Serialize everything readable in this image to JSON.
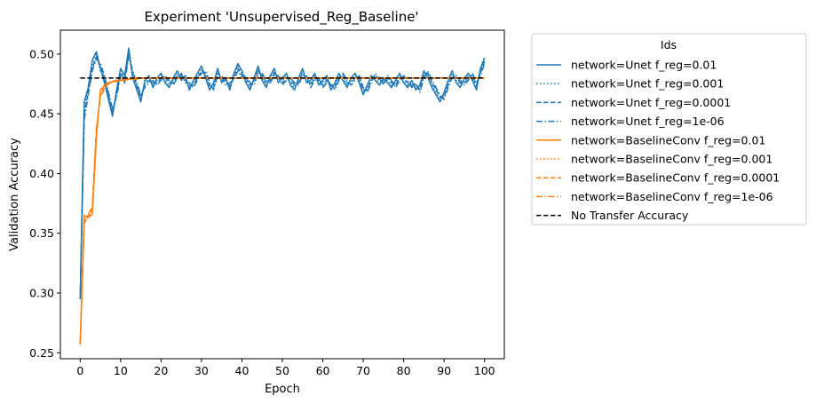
{
  "chart_data": {
    "type": "line",
    "title": "Experiment 'Unsupervised_Reg_Baseline'",
    "xlabel": "Epoch",
    "ylabel": "Validation Accuracy",
    "xlim": [
      -4.9,
      104.9
    ],
    "ylim": [
      0.245,
      0.52
    ],
    "xticks": [
      0,
      10,
      20,
      30,
      40,
      50,
      60,
      70,
      80,
      90,
      100
    ],
    "yticks": [
      0.25,
      0.3,
      0.35,
      0.4,
      0.45,
      0.5
    ],
    "ytick_labels": [
      "0.25",
      "0.30",
      "0.35",
      "0.40",
      "0.45",
      "0.50"
    ],
    "grid": false,
    "legend": {
      "title": "Ids",
      "placement": "outside-right"
    },
    "colors": {
      "unet": "#1f77b4",
      "baseline": "#ff7f0e",
      "reference": "#000000"
    },
    "x": [
      0,
      1,
      2,
      3,
      4,
      5,
      6,
      7,
      8,
      9,
      10,
      11,
      12,
      13,
      14,
      15,
      16,
      17,
      18,
      19,
      20,
      21,
      22,
      23,
      24,
      25,
      26,
      27,
      28,
      29,
      30,
      31,
      32,
      33,
      34,
      35,
      36,
      37,
      38,
      39,
      40,
      41,
      42,
      43,
      44,
      45,
      46,
      47,
      48,
      49,
      50,
      51,
      52,
      53,
      54,
      55,
      56,
      57,
      58,
      59,
      60,
      61,
      62,
      63,
      64,
      65,
      66,
      67,
      68,
      69,
      70,
      71,
      72,
      73,
      74,
      75,
      76,
      77,
      78,
      79,
      80,
      81,
      82,
      83,
      84,
      85,
      86,
      87,
      88,
      89,
      90,
      91,
      92,
      93,
      94,
      95,
      96,
      97,
      98,
      99,
      100
    ],
    "series": [
      {
        "name": "network=Unet f_reg=0.01",
        "group": "unet",
        "dash": "solid",
        "values": [
          0.295,
          0.46,
          0.472,
          0.495,
          0.502,
          0.488,
          0.476,
          0.462,
          0.448,
          0.47,
          0.488,
          0.482,
          0.505,
          0.48,
          0.47,
          0.46,
          0.478,
          0.482,
          0.472,
          0.48,
          0.484,
          0.476,
          0.472,
          0.48,
          0.486,
          0.478,
          0.482,
          0.47,
          0.478,
          0.484,
          0.49,
          0.48,
          0.47,
          0.476,
          0.488,
          0.476,
          0.48,
          0.47,
          0.484,
          0.492,
          0.486,
          0.476,
          0.47,
          0.48,
          0.49,
          0.478,
          0.472,
          0.482,
          0.488,
          0.476,
          0.48,
          0.484,
          0.474,
          0.47,
          0.48,
          0.488,
          0.476,
          0.478,
          0.484,
          0.474,
          0.478,
          0.482,
          0.47,
          0.476,
          0.484,
          0.478,
          0.472,
          0.48,
          0.484,
          0.476,
          0.466,
          0.474,
          0.482,
          0.478,
          0.474,
          0.48,
          0.476,
          0.472,
          0.478,
          0.484,
          0.476,
          0.472,
          0.478,
          0.47,
          0.474,
          0.486,
          0.48,
          0.472,
          0.466,
          0.46,
          0.468,
          0.478,
          0.486,
          0.476,
          0.472,
          0.48,
          0.484,
          0.478,
          0.47,
          0.488,
          0.497
        ]
      },
      {
        "name": "network=Unet f_reg=0.001",
        "group": "unet",
        "dash": "dotted",
        "values": [
          0.295,
          0.455,
          0.47,
          0.49,
          0.5,
          0.486,
          0.478,
          0.464,
          0.45,
          0.468,
          0.486,
          0.48,
          0.5,
          0.482,
          0.472,
          0.462,
          0.476,
          0.48,
          0.474,
          0.478,
          0.482,
          0.478,
          0.474,
          0.478,
          0.484,
          0.48,
          0.48,
          0.472,
          0.476,
          0.482,
          0.488,
          0.482,
          0.472,
          0.474,
          0.486,
          0.478,
          0.478,
          0.472,
          0.482,
          0.49,
          0.484,
          0.478,
          0.472,
          0.478,
          0.488,
          0.48,
          0.474,
          0.48,
          0.486,
          0.478,
          0.478,
          0.482,
          0.476,
          0.472,
          0.478,
          0.486,
          0.478,
          0.476,
          0.482,
          0.476,
          0.476,
          0.48,
          0.472,
          0.474,
          0.482,
          0.48,
          0.474,
          0.478,
          0.482,
          0.478,
          0.468,
          0.472,
          0.48,
          0.48,
          0.476,
          0.478,
          0.478,
          0.474,
          0.476,
          0.482,
          0.478,
          0.474,
          0.476,
          0.472,
          0.472,
          0.484,
          0.482,
          0.474,
          0.468,
          0.462,
          0.466,
          0.476,
          0.484,
          0.478,
          0.474,
          0.478,
          0.482,
          0.48,
          0.472,
          0.486,
          0.495
        ]
      },
      {
        "name": "network=Unet f_reg=0.0001",
        "group": "unet",
        "dash": "dashed",
        "values": [
          0.295,
          0.45,
          0.468,
          0.488,
          0.498,
          0.49,
          0.48,
          0.466,
          0.452,
          0.466,
          0.484,
          0.478,
          0.502,
          0.484,
          0.474,
          0.464,
          0.474,
          0.478,
          0.476,
          0.476,
          0.48,
          0.48,
          0.476,
          0.476,
          0.482,
          0.482,
          0.478,
          0.474,
          0.474,
          0.48,
          0.486,
          0.484,
          0.474,
          0.472,
          0.484,
          0.48,
          0.476,
          0.474,
          0.48,
          0.488,
          0.482,
          0.48,
          0.474,
          0.476,
          0.486,
          0.482,
          0.476,
          0.478,
          0.484,
          0.48,
          0.476,
          0.48,
          0.478,
          0.474,
          0.476,
          0.484,
          0.48,
          0.474,
          0.48,
          0.478,
          0.474,
          0.478,
          0.474,
          0.472,
          0.48,
          0.482,
          0.476,
          0.476,
          0.48,
          0.48,
          0.47,
          0.47,
          0.478,
          0.482,
          0.478,
          0.476,
          0.48,
          0.476,
          0.474,
          0.48,
          0.48,
          0.476,
          0.474,
          0.474,
          0.47,
          0.482,
          0.484,
          0.476,
          0.47,
          0.464,
          0.464,
          0.474,
          0.482,
          0.48,
          0.476,
          0.476,
          0.48,
          0.482,
          0.474,
          0.484,
          0.494
        ]
      },
      {
        "name": "network=Unet f_reg=1e-06",
        "group": "unet",
        "dash": "dashdot",
        "values": [
          0.295,
          0.445,
          0.466,
          0.486,
          0.496,
          0.492,
          0.482,
          0.468,
          0.454,
          0.464,
          0.482,
          0.476,
          0.498,
          0.486,
          0.476,
          0.466,
          0.472,
          0.476,
          0.478,
          0.474,
          0.478,
          0.482,
          0.478,
          0.474,
          0.48,
          0.484,
          0.476,
          0.476,
          0.472,
          0.478,
          0.484,
          0.486,
          0.476,
          0.47,
          0.482,
          0.482,
          0.474,
          0.476,
          0.478,
          0.486,
          0.48,
          0.482,
          0.476,
          0.474,
          0.484,
          0.484,
          0.478,
          0.476,
          0.482,
          0.482,
          0.474,
          0.478,
          0.48,
          0.476,
          0.474,
          0.482,
          0.482,
          0.472,
          0.478,
          0.48,
          0.472,
          0.476,
          0.476,
          0.47,
          0.478,
          0.484,
          0.478,
          0.474,
          0.478,
          0.482,
          0.472,
          0.468,
          0.476,
          0.484,
          0.48,
          0.474,
          0.482,
          0.478,
          0.472,
          0.478,
          0.482,
          0.478,
          0.472,
          0.476,
          0.468,
          0.48,
          0.486,
          0.478,
          0.472,
          0.466,
          0.462,
          0.472,
          0.48,
          0.482,
          0.478,
          0.474,
          0.478,
          0.484,
          0.476,
          0.482,
          0.492
        ]
      },
      {
        "name": "network=BaselineConv f_reg=0.01",
        "group": "baseline",
        "dash": "solid",
        "values": [
          0.257,
          0.365,
          0.363,
          0.366,
          0.43,
          0.47,
          0.474,
          0.476,
          0.477,
          0.477,
          0.478,
          0.478,
          0.479,
          0.479,
          0.479,
          0.48,
          0.48,
          0.48,
          0.48,
          0.48,
          0.48,
          0.48,
          0.48,
          0.48,
          0.48,
          0.48,
          0.48,
          0.48,
          0.48,
          0.48,
          0.48,
          0.48,
          0.48,
          0.48,
          0.48,
          0.48,
          0.48,
          0.48,
          0.48,
          0.48,
          0.48,
          0.48,
          0.48,
          0.48,
          0.48,
          0.48,
          0.48,
          0.48,
          0.48,
          0.48,
          0.48,
          0.48,
          0.48,
          0.48,
          0.48,
          0.48,
          0.48,
          0.48,
          0.48,
          0.48,
          0.48,
          0.48,
          0.48,
          0.48,
          0.48,
          0.48,
          0.48,
          0.48,
          0.48,
          0.48,
          0.48,
          0.48,
          0.48,
          0.48,
          0.48,
          0.48,
          0.48,
          0.48,
          0.48,
          0.48,
          0.48,
          0.48,
          0.48,
          0.48,
          0.48,
          0.48,
          0.48,
          0.48,
          0.48,
          0.48,
          0.48,
          0.48,
          0.48,
          0.48,
          0.48,
          0.48,
          0.48,
          0.48,
          0.48,
          0.48,
          0.48
        ]
      },
      {
        "name": "network=BaselineConv f_reg=0.001",
        "group": "baseline",
        "dash": "dotted",
        "values": [
          0.257,
          0.362,
          0.364,
          0.368,
          0.432,
          0.468,
          0.473,
          0.476,
          0.477,
          0.478,
          0.478,
          0.479,
          0.479,
          0.479,
          0.48,
          0.48,
          0.48,
          0.48,
          0.48,
          0.48,
          0.48,
          0.48,
          0.48,
          0.48,
          0.48,
          0.48,
          0.48,
          0.48,
          0.48,
          0.48,
          0.48,
          0.48,
          0.48,
          0.48,
          0.48,
          0.48,
          0.48,
          0.48,
          0.48,
          0.48,
          0.48,
          0.48,
          0.48,
          0.48,
          0.48,
          0.48,
          0.48,
          0.48,
          0.48,
          0.48,
          0.48,
          0.48,
          0.48,
          0.48,
          0.48,
          0.48,
          0.48,
          0.48,
          0.48,
          0.48,
          0.48,
          0.48,
          0.48,
          0.48,
          0.48,
          0.48,
          0.48,
          0.48,
          0.48,
          0.48,
          0.48,
          0.48,
          0.48,
          0.48,
          0.48,
          0.48,
          0.48,
          0.48,
          0.48,
          0.48,
          0.48,
          0.48,
          0.48,
          0.48,
          0.48,
          0.48,
          0.48,
          0.48,
          0.48,
          0.48,
          0.48,
          0.48,
          0.48,
          0.48,
          0.48,
          0.48,
          0.48,
          0.48,
          0.48,
          0.48,
          0.48
        ]
      },
      {
        "name": "network=BaselineConv f_reg=0.0001",
        "group": "baseline",
        "dash": "dashed",
        "values": [
          0.257,
          0.36,
          0.365,
          0.37,
          0.435,
          0.466,
          0.472,
          0.475,
          0.477,
          0.478,
          0.478,
          0.479,
          0.479,
          0.48,
          0.48,
          0.48,
          0.48,
          0.48,
          0.48,
          0.48,
          0.48,
          0.48,
          0.48,
          0.48,
          0.48,
          0.48,
          0.48,
          0.48,
          0.48,
          0.48,
          0.48,
          0.48,
          0.48,
          0.48,
          0.48,
          0.48,
          0.48,
          0.48,
          0.48,
          0.48,
          0.48,
          0.48,
          0.48,
          0.48,
          0.48,
          0.48,
          0.48,
          0.48,
          0.48,
          0.48,
          0.48,
          0.48,
          0.48,
          0.48,
          0.48,
          0.48,
          0.48,
          0.48,
          0.48,
          0.48,
          0.48,
          0.48,
          0.48,
          0.48,
          0.48,
          0.48,
          0.48,
          0.48,
          0.48,
          0.48,
          0.48,
          0.48,
          0.48,
          0.48,
          0.48,
          0.48,
          0.48,
          0.48,
          0.48,
          0.48,
          0.48,
          0.48,
          0.48,
          0.48,
          0.48,
          0.48,
          0.48,
          0.48,
          0.48,
          0.48,
          0.48,
          0.48,
          0.48,
          0.48,
          0.48,
          0.48,
          0.48,
          0.48,
          0.48,
          0.48,
          0.48
        ]
      },
      {
        "name": "network=BaselineConv f_reg=1e-06",
        "group": "baseline",
        "dash": "dashdot",
        "values": [
          0.257,
          0.358,
          0.366,
          0.372,
          0.438,
          0.464,
          0.471,
          0.475,
          0.477,
          0.478,
          0.478,
          0.479,
          0.48,
          0.48,
          0.48,
          0.48,
          0.48,
          0.48,
          0.48,
          0.48,
          0.48,
          0.48,
          0.48,
          0.48,
          0.48,
          0.48,
          0.48,
          0.48,
          0.48,
          0.48,
          0.48,
          0.48,
          0.48,
          0.48,
          0.48,
          0.48,
          0.48,
          0.48,
          0.48,
          0.48,
          0.48,
          0.48,
          0.48,
          0.48,
          0.48,
          0.48,
          0.48,
          0.48,
          0.48,
          0.48,
          0.48,
          0.48,
          0.48,
          0.48,
          0.48,
          0.48,
          0.48,
          0.48,
          0.48,
          0.48,
          0.48,
          0.48,
          0.48,
          0.48,
          0.48,
          0.48,
          0.48,
          0.48,
          0.48,
          0.48,
          0.48,
          0.48,
          0.48,
          0.48,
          0.48,
          0.48,
          0.48,
          0.48,
          0.48,
          0.48,
          0.48,
          0.48,
          0.48,
          0.48,
          0.48,
          0.48,
          0.48,
          0.48,
          0.48,
          0.48,
          0.48,
          0.48,
          0.48,
          0.48,
          0.48,
          0.48,
          0.48,
          0.48,
          0.48,
          0.48,
          0.48
        ]
      }
    ],
    "reference_line": {
      "name": "No Transfer Accuracy",
      "group": "reference",
      "dash": "dashed",
      "y": 0.48,
      "x_range": [
        0,
        100
      ]
    }
  }
}
